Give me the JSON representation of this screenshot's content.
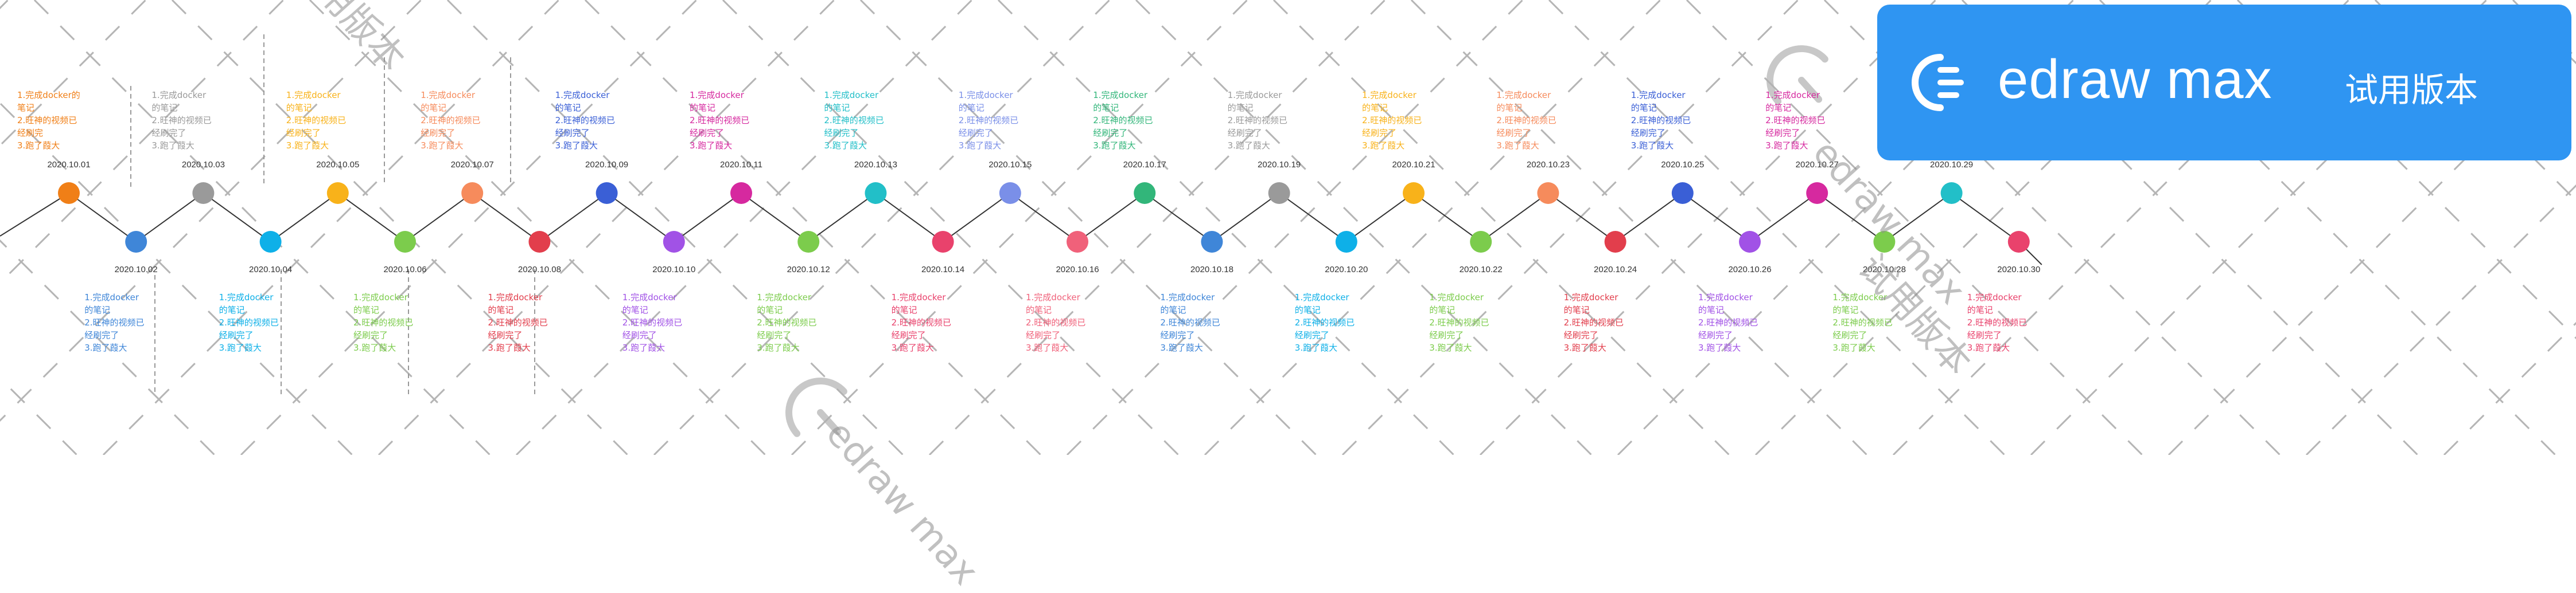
{
  "events": [
    {
      "date": "2020.10.01",
      "color": "#f07f17",
      "side": "top",
      "lines": [
        "1.完成docker的",
        "笔记",
        "2.旺神的视频已",
        "经刷完",
        "3.跑了葭大"
      ]
    },
    {
      "date": "2020.10.02",
      "color": "#3f86d8",
      "side": "bottom",
      "lines": [
        "1.完成docker",
        "的笔记",
        "2.旺神的视频已",
        "经刷完了",
        "3.跑了葭大"
      ]
    },
    {
      "date": "2020.10.03",
      "color": "#9a9a9a",
      "side": "top",
      "lines": [
        "1.完成docker",
        "的笔记",
        "2.旺神的视频已",
        "经刷完了",
        "3.跑了葭大"
      ]
    },
    {
      "date": "2020.10.04",
      "color": "#0eb0e8",
      "side": "bottom",
      "lines": [
        "1.完成docker",
        "的笔记",
        "2.旺神的视频已",
        "经刷完了",
        "3.跑了葭大"
      ]
    },
    {
      "date": "2020.10.05",
      "color": "#f8b21a",
      "side": "top",
      "lines": [
        "1.完成docker",
        "的笔记",
        "2.旺神的视频已",
        "经刷完了",
        "3.跑了葭大"
      ]
    },
    {
      "date": "2020.10.06",
      "color": "#7ccc4c",
      "side": "bottom",
      "lines": [
        "1.完成docker",
        "的笔记",
        "2.旺神的视频已",
        "经刷完了",
        "3.跑了葭大"
      ]
    },
    {
      "date": "2020.10.07",
      "color": "#f68b5c",
      "side": "top",
      "lines": [
        "1.完成docker",
        "的笔记",
        "2.旺神的视频已",
        "经刷完了",
        "3.跑了葭大"
      ]
    },
    {
      "date": "2020.10.08",
      "color": "#e23e4c",
      "side": "bottom",
      "lines": [
        "1.完成docker",
        "的笔记",
        "2.旺神的视频已",
        "经刷完了",
        "3.跑了葭大"
      ]
    },
    {
      "date": "2020.10.09",
      "color": "#3a5fd6",
      "side": "top",
      "lines": [
        "1.完成docker",
        "的笔记",
        "2.旺神的视频已",
        "经刷完了",
        "3.跑了葭大"
      ]
    },
    {
      "date": "2020.10.10",
      "color": "#a152e6",
      "side": "bottom",
      "lines": [
        "1.完成docker",
        "的笔记",
        "2.旺神的视频已",
        "经刷完了",
        "3.跑了葭大"
      ]
    },
    {
      "date": "2020.10.11",
      "color": "#d6299f",
      "side": "top",
      "lines": [
        "1.完成docker",
        "的笔记",
        "2.旺神的视频已",
        "经刷完了",
        "3.跑了葭大"
      ]
    },
    {
      "date": "2020.10.12",
      "color": "#7ccc4c",
      "side": "bottom",
      "lines": [
        "1.完成docker",
        "的笔记",
        "2.旺神的视频已",
        "经刷完了",
        "3.跑了葭大"
      ]
    },
    {
      "date": "2020.10.13",
      "color": "#22bfc8",
      "side": "top",
      "lines": [
        "1.完成docker",
        "的笔记",
        "2.旺神的视频已",
        "经刷完了",
        "3.跑了葭大"
      ]
    },
    {
      "date": "2020.10.14",
      "color": "#e9426c",
      "side": "bottom",
      "lines": [
        "1.完成docker",
        "的笔记",
        "2.旺神的视频已",
        "经刷完了",
        "3.跑了葭大"
      ]
    },
    {
      "date": "2020.10.15",
      "color": "#7a8fe8",
      "side": "top",
      "lines": [
        "1.完成docker",
        "的笔记",
        "2.旺神的视频已",
        "经刷完了",
        "3.跑了葭大"
      ]
    },
    {
      "date": "2020.10.16",
      "color": "#f0617a",
      "side": "bottom",
      "lines": [
        "1.完成docker",
        "的笔记",
        "2.旺神的视频已",
        "经刷完了",
        "3.跑了葭大"
      ]
    },
    {
      "date": "2020.10.17",
      "color": "#32b67a",
      "side": "top",
      "lines": [
        "1.完成docker",
        "的笔记",
        "2.旺神的视频已",
        "经刷完了",
        "3.跑了葭大"
      ]
    },
    {
      "date": "2020.10.18",
      "color": "#3f86d8",
      "side": "bottom",
      "lines": [
        "1.完成docker",
        "的笔记",
        "2.旺神的视频已",
        "经刷完了",
        "3.跑了葭大"
      ]
    },
    {
      "date": "2020.10.19",
      "color": "#9a9a9a",
      "side": "top",
      "lines": [
        "1.完成docker",
        "的笔记",
        "2.旺神的视频已",
        "经刷完了",
        "3.跑了葭大"
      ]
    },
    {
      "date": "2020.10.20",
      "color": "#0eb0e8",
      "side": "bottom",
      "lines": [
        "1.完成docker",
        "的笔记",
        "2.旺神的视频已",
        "经刷完了",
        "3.跑了葭大"
      ]
    },
    {
      "date": "2020.10.21",
      "color": "#f8b21a",
      "side": "top",
      "lines": [
        "1.完成docker",
        "的笔记",
        "2.旺神的视频已",
        "经刷完了",
        "3.跑了葭大"
      ]
    },
    {
      "date": "2020.10.22",
      "color": "#7ccc4c",
      "side": "bottom",
      "lines": [
        "1.完成docker",
        "的笔记",
        "2.旺神的视频已",
        "经刷完了",
        "3.跑了葭大"
      ]
    },
    {
      "date": "2020.10.23",
      "color": "#f68b5c",
      "side": "top",
      "lines": [
        "1.完成docker",
        "的笔记",
        "2.旺神的视频已",
        "经刷完了",
        "3.跑了葭大"
      ]
    },
    {
      "date": "2020.10.24",
      "color": "#e23e4c",
      "side": "bottom",
      "lines": [
        "1.完成docker",
        "的笔记",
        "2.旺神的视频已",
        "经刷完了",
        "3.跑了葭大"
      ]
    },
    {
      "date": "2020.10.25",
      "color": "#3a5fd6",
      "side": "top",
      "lines": [
        "1.完成docker",
        "的笔记",
        "2.旺神的视频已",
        "经刷完了",
        "3.跑了葭大"
      ]
    },
    {
      "date": "2020.10.26",
      "color": "#a152e6",
      "side": "bottom",
      "lines": [
        "1.完成docker",
        "的笔记",
        "2.旺神的视频已",
        "经刷完了",
        "3.跑了葭大"
      ]
    },
    {
      "date": "2020.10.27",
      "color": "#d6299f",
      "side": "top",
      "lines": [
        "1.完成docker",
        "的笔记",
        "2.旺神的视频已",
        "经刷完了",
        "3.跑了葭大"
      ]
    },
    {
      "date": "2020.10.28",
      "color": "#7ccc4c",
      "side": "bottom",
      "lines": [
        "1.完成docker",
        "的笔记",
        "2.旺神的视频已",
        "经刷完了",
        "3.跑了葭大"
      ]
    },
    {
      "date": "2020.10.29",
      "color": "#22bfc8",
      "side": "top",
      "lines": []
    },
    {
      "date": "2020.10.30",
      "color": "#e9426c",
      "side": "bottom",
      "lines": [
        "1.完成docker",
        "的笔记",
        "2.旺神的视频已",
        "经刷完了",
        "3.跑了葭大"
      ]
    }
  ],
  "colors": {
    "line": "#333333",
    "dash": "#b5b5b5",
    "watermark_stroke": "#b0b0b0",
    "badge_bg": "#2f95f2"
  },
  "watermark": {
    "brand": "edraw max",
    "tag": "试用版本"
  }
}
